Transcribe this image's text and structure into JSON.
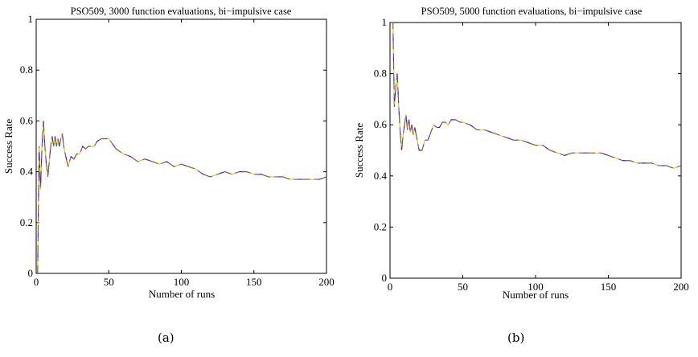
{
  "chart_data": [
    {
      "type": "line",
      "title": "PSO509, 3000 function evaluations, bi−impulsive case",
      "xlabel": "Number of runs",
      "ylabel": "Success Rate",
      "caption": "(a)",
      "xlim": [
        0,
        200
      ],
      "ylim": [
        0,
        1
      ],
      "xticks": [
        "0",
        "50",
        "100",
        "150",
        "200"
      ],
      "yticks": [
        "0",
        "0.2",
        "0.4",
        "0.6",
        "0.8",
        "1"
      ],
      "grid": false,
      "series": [
        {
          "color": "#c0392b",
          "x": [
            1,
            2,
            3,
            4,
            5,
            6,
            7,
            8,
            9,
            10,
            11,
            12,
            13,
            14,
            15,
            16,
            17,
            18,
            19,
            20,
            22,
            24,
            26,
            28,
            30,
            32,
            34,
            36,
            38,
            40,
            42,
            45,
            48,
            50,
            55,
            60,
            65,
            70,
            75,
            80,
            85,
            90,
            95,
            100,
            105,
            110,
            115,
            120,
            125,
            130,
            135,
            140,
            145,
            150,
            155,
            160,
            165,
            170,
            175,
            180,
            185,
            190,
            195,
            200
          ],
          "values": [
            0.0,
            0.5,
            0.33,
            0.5,
            0.6,
            0.5,
            0.43,
            0.38,
            0.44,
            0.5,
            0.54,
            0.5,
            0.54,
            0.5,
            0.53,
            0.5,
            0.53,
            0.55,
            0.5,
            0.47,
            0.42,
            0.46,
            0.45,
            0.47,
            0.47,
            0.5,
            0.49,
            0.5,
            0.5,
            0.5,
            0.52,
            0.53,
            0.53,
            0.53,
            0.49,
            0.47,
            0.46,
            0.44,
            0.45,
            0.44,
            0.43,
            0.44,
            0.42,
            0.43,
            0.42,
            0.41,
            0.39,
            0.38,
            0.39,
            0.4,
            0.39,
            0.4,
            0.4,
            0.39,
            0.39,
            0.38,
            0.38,
            0.38,
            0.37,
            0.37,
            0.37,
            0.37,
            0.37,
            0.38
          ]
        }
      ]
    },
    {
      "type": "line",
      "title": "PSO509, 5000 function evaluations, bi−impulsive case",
      "xlabel": "Number of runs",
      "ylabel": "Success Rate",
      "caption": "(b)",
      "xlim": [
        0,
        200
      ],
      "ylim": [
        0,
        1
      ],
      "xticks": [
        "0",
        "50",
        "100",
        "150",
        "200"
      ],
      "yticks": [
        "0",
        "0.2",
        "0.4",
        "0.6",
        "0.8",
        "1"
      ],
      "grid": false,
      "series": [
        {
          "color": "#c0392b",
          "x": [
            1,
            2,
            3,
            4,
            5,
            6,
            7,
            8,
            9,
            10,
            11,
            12,
            13,
            14,
            15,
            16,
            17,
            18,
            19,
            20,
            22,
            24,
            26,
            28,
            30,
            32,
            34,
            36,
            38,
            40,
            42,
            45,
            48,
            50,
            55,
            60,
            65,
            70,
            75,
            80,
            85,
            90,
            95,
            100,
            105,
            110,
            115,
            120,
            125,
            130,
            135,
            140,
            145,
            150,
            155,
            160,
            165,
            170,
            175,
            180,
            185,
            190,
            195,
            200
          ],
          "values": [
            1.0,
            1.0,
            0.67,
            0.75,
            0.8,
            0.67,
            0.57,
            0.5,
            0.56,
            0.6,
            0.64,
            0.58,
            0.62,
            0.57,
            0.6,
            0.56,
            0.59,
            0.56,
            0.53,
            0.5,
            0.5,
            0.54,
            0.54,
            0.57,
            0.6,
            0.59,
            0.59,
            0.61,
            0.61,
            0.6,
            0.62,
            0.62,
            0.61,
            0.61,
            0.6,
            0.58,
            0.58,
            0.57,
            0.56,
            0.55,
            0.54,
            0.54,
            0.53,
            0.52,
            0.52,
            0.5,
            0.49,
            0.48,
            0.49,
            0.49,
            0.49,
            0.49,
            0.49,
            0.48,
            0.47,
            0.46,
            0.46,
            0.45,
            0.45,
            0.45,
            0.44,
            0.44,
            0.43,
            0.44
          ]
        }
      ]
    }
  ]
}
